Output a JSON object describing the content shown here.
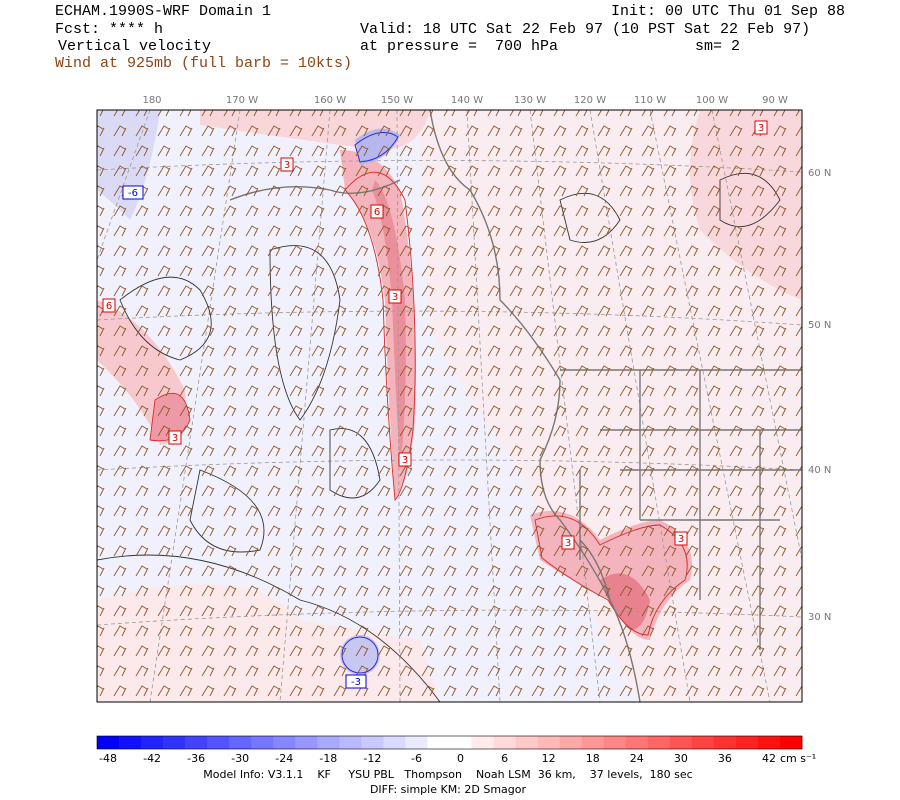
{
  "header": {
    "title": "ECHAM.1990S-WRF Domain 1",
    "init": "Init: 00 UTC Thu 01 Sep 88",
    "forecast": "Fcst: **** h",
    "valid": "Valid: 18 UTC Sat 22 Feb 97 (10 PST Sat 22 Feb 97)",
    "field": "Vertical velocity",
    "pressure": "at pressure =  700 hPa",
    "smoothing": "sm= 2",
    "overlay": "Wind at 925mb (full barb = 10kts)"
  },
  "map": {
    "longitude_labels": [
      "180",
      "170 W",
      "160 W",
      "150 W",
      "140 W",
      "130 W",
      "120 W",
      "110 W",
      "100 W",
      "90 W"
    ],
    "latitude_labels": [
      "60 N",
      "50 N",
      "40 N",
      "30 N"
    ],
    "contour_labels": [
      "3",
      "6",
      "-6",
      "3",
      "6",
      "3",
      "3",
      "3",
      "3",
      "-3",
      "3"
    ]
  },
  "colorbar": {
    "ticks": [
      -48,
      -42,
      -36,
      -30,
      -24,
      -18,
      -12,
      -6,
      0,
      6,
      12,
      18,
      24,
      30,
      36,
      42
    ],
    "unit": "cm s⁻¹"
  },
  "footer": {
    "model_info": "Model Info: V3.1.1    KF     YSU PBL   Thompson    Noah LSM  36 km,    37 levels,  180 sec",
    "diff": "DIFF: simple KM: 2D Smagor"
  }
}
